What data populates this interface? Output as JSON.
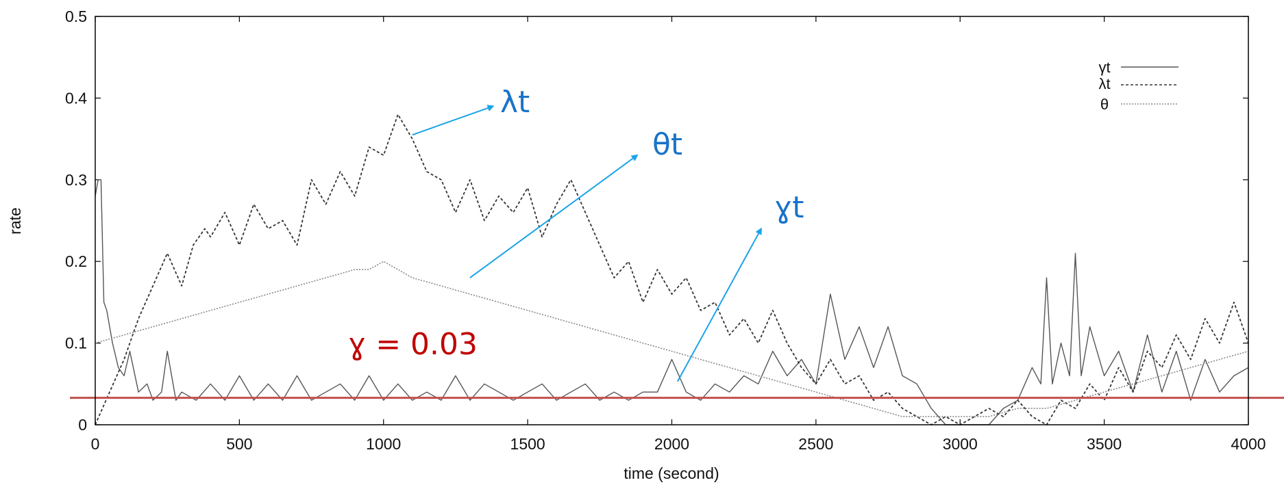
{
  "chart_data": {
    "type": "line",
    "xlabel": "time (second)",
    "ylabel": "rate",
    "xlim": [
      0,
      4000
    ],
    "ylim": [
      0,
      0.5
    ],
    "xticks": [
      "0",
      "500",
      "1000",
      "1500",
      "2000",
      "2500",
      "3000",
      "3500",
      "4000"
    ],
    "yticks": [
      "0",
      "0.1",
      "0.2",
      "0.3",
      "0.4",
      "0.5"
    ],
    "legend_position": "top-right",
    "series": [
      {
        "name": "γt",
        "style": "solid",
        "color": "#555555",
        "x": [
          0,
          10,
          20,
          30,
          40,
          60,
          80,
          100,
          120,
          150,
          180,
          200,
          230,
          250,
          280,
          300,
          350,
          400,
          450,
          500,
          550,
          600,
          650,
          700,
          750,
          800,
          850,
          900,
          950,
          1000,
          1050,
          1100,
          1150,
          1200,
          1250,
          1300,
          1350,
          1400,
          1450,
          1500,
          1550,
          1600,
          1650,
          1700,
          1750,
          1800,
          1850,
          1900,
          1950,
          2000,
          2050,
          2100,
          2150,
          2200,
          2250,
          2300,
          2350,
          2400,
          2450,
          2500,
          2550,
          2600,
          2650,
          2700,
          2750,
          2800,
          2850,
          2900,
          2950,
          3000,
          3050,
          3100,
          3150,
          3200,
          3250,
          3280,
          3300,
          3320,
          3350,
          3380,
          3400,
          3420,
          3450,
          3500,
          3550,
          3600,
          3650,
          3700,
          3750,
          3800,
          3850,
          3900,
          3950,
          4000
        ],
        "values": [
          0.28,
          0.3,
          0.3,
          0.15,
          0.14,
          0.1,
          0.07,
          0.06,
          0.09,
          0.04,
          0.05,
          0.03,
          0.04,
          0.09,
          0.03,
          0.04,
          0.03,
          0.05,
          0.03,
          0.06,
          0.03,
          0.05,
          0.03,
          0.06,
          0.03,
          0.04,
          0.05,
          0.03,
          0.06,
          0.03,
          0.05,
          0.03,
          0.04,
          0.03,
          0.06,
          0.03,
          0.05,
          0.04,
          0.03,
          0.04,
          0.05,
          0.03,
          0.04,
          0.05,
          0.03,
          0.04,
          0.03,
          0.04,
          0.04,
          0.08,
          0.04,
          0.03,
          0.05,
          0.04,
          0.06,
          0.05,
          0.09,
          0.06,
          0.08,
          0.05,
          0.16,
          0.08,
          0.12,
          0.07,
          0.12,
          0.06,
          0.05,
          0.02,
          0.0,
          0.0,
          0.0,
          0.0,
          0.02,
          0.03,
          0.07,
          0.05,
          0.18,
          0.05,
          0.1,
          0.06,
          0.21,
          0.06,
          0.12,
          0.06,
          0.09,
          0.04,
          0.11,
          0.04,
          0.09,
          0.03,
          0.08,
          0.04,
          0.06,
          0.07
        ]
      },
      {
        "name": "λt",
        "style": "dashed",
        "color": "#333333",
        "x": [
          0,
          50,
          100,
          150,
          200,
          250,
          300,
          340,
          380,
          400,
          450,
          500,
          550,
          600,
          650,
          700,
          750,
          800,
          850,
          900,
          950,
          1000,
          1050,
          1100,
          1150,
          1200,
          1250,
          1300,
          1350,
          1400,
          1450,
          1500,
          1550,
          1600,
          1650,
          1700,
          1750,
          1800,
          1850,
          1900,
          1950,
          2000,
          2050,
          2100,
          2150,
          2200,
          2250,
          2300,
          2350,
          2400,
          2450,
          2500,
          2550,
          2600,
          2650,
          2700,
          2750,
          2800,
          2850,
          2900,
          2950,
          3000,
          3050,
          3100,
          3150,
          3200,
          3250,
          3300,
          3350,
          3400,
          3450,
          3500,
          3550,
          3600,
          3650,
          3700,
          3750,
          3800,
          3850,
          3900,
          3950,
          4000
        ],
        "values": [
          0.0,
          0.04,
          0.08,
          0.13,
          0.17,
          0.21,
          0.17,
          0.22,
          0.24,
          0.23,
          0.26,
          0.22,
          0.27,
          0.24,
          0.25,
          0.22,
          0.3,
          0.27,
          0.31,
          0.28,
          0.34,
          0.33,
          0.38,
          0.35,
          0.31,
          0.3,
          0.26,
          0.3,
          0.25,
          0.28,
          0.26,
          0.29,
          0.23,
          0.27,
          0.3,
          0.26,
          0.22,
          0.18,
          0.2,
          0.15,
          0.19,
          0.16,
          0.18,
          0.14,
          0.15,
          0.11,
          0.13,
          0.1,
          0.14,
          0.1,
          0.07,
          0.05,
          0.08,
          0.05,
          0.06,
          0.03,
          0.04,
          0.02,
          0.01,
          0.0,
          0.01,
          0.0,
          0.01,
          0.02,
          0.01,
          0.03,
          0.01,
          0.0,
          0.03,
          0.02,
          0.05,
          0.03,
          0.07,
          0.04,
          0.09,
          0.07,
          0.11,
          0.08,
          0.13,
          0.1,
          0.15,
          0.1
        ]
      },
      {
        "name": "θ",
        "style": "dotted",
        "color": "#444444",
        "x": [
          0,
          100,
          200,
          300,
          400,
          500,
          600,
          700,
          800,
          900,
          950,
          1000,
          1050,
          1100,
          1200,
          1300,
          1400,
          1500,
          1600,
          1700,
          1800,
          1900,
          2000,
          2100,
          2200,
          2300,
          2400,
          2500,
          2600,
          2700,
          2800,
          2900,
          3000,
          3100,
          3200,
          3300,
          3400,
          3500,
          3600,
          3700,
          3800,
          3900,
          4000
        ],
        "values": [
          0.1,
          0.11,
          0.12,
          0.13,
          0.14,
          0.15,
          0.16,
          0.17,
          0.18,
          0.19,
          0.19,
          0.2,
          0.19,
          0.18,
          0.17,
          0.16,
          0.15,
          0.14,
          0.13,
          0.12,
          0.11,
          0.1,
          0.09,
          0.08,
          0.07,
          0.06,
          0.05,
          0.04,
          0.03,
          0.02,
          0.01,
          0.01,
          0.01,
          0.01,
          0.02,
          0.02,
          0.03,
          0.04,
          0.05,
          0.06,
          0.07,
          0.08,
          0.09
        ]
      }
    ],
    "reference_line": {
      "y": 0.033,
      "color": "#c0504d",
      "label": "ɣ = 0.03"
    },
    "annotations": [
      {
        "text": "λt",
        "color": "#1a73c8",
        "arrow_color": "#1aa3e8",
        "from": [
          1100,
          0.355
        ],
        "to": [
          1380,
          0.39
        ]
      },
      {
        "text": "θt",
        "color": "#1a73c8",
        "arrow_color": "#1aa3e8",
        "from": [
          1300,
          0.18
        ],
        "to": [
          1880,
          0.33
        ]
      },
      {
        "text": "ɣt",
        "color": "#1a73c8",
        "arrow_color": "#1aa3e8",
        "from": [
          2020,
          0.053
        ],
        "to": [
          2310,
          0.24
        ]
      }
    ]
  }
}
